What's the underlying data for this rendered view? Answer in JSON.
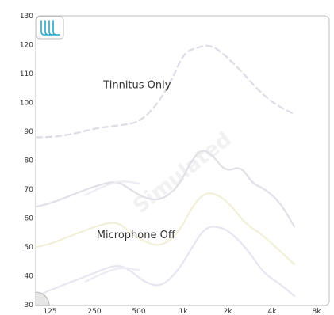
{
  "chart_data": {
    "type": "line",
    "x_categories": [
      "125",
      "250",
      "500",
      "1k",
      "2k",
      "4k",
      "8k"
    ],
    "y_ticks": [
      30,
      40,
      50,
      60,
      70,
      80,
      90,
      100,
      110,
      120,
      130
    ],
    "ylim": [
      30,
      130
    ],
    "grid": false,
    "annotations": [
      {
        "text": "Tinnitus Only",
        "x": 1.2,
        "y": 105
      },
      {
        "text": "Microphone Off",
        "x": 1.05,
        "y": 53
      }
    ],
    "watermark": "Simulated",
    "series": [
      {
        "style": "dashed",
        "color": "#dcdce6",
        "points": [
          [
            -0.3,
            88
          ],
          [
            0,
            88
          ],
          [
            0.5,
            89
          ],
          [
            1,
            91
          ],
          [
            1.5,
            92
          ],
          [
            2,
            93
          ],
          [
            2.4,
            99
          ],
          [
            2.75,
            108
          ],
          [
            3,
            117
          ],
          [
            3.3,
            119
          ],
          [
            3.6,
            120
          ],
          [
            3.9,
            117
          ],
          [
            4.3,
            111
          ],
          [
            4.7,
            104
          ],
          [
            5.1,
            99
          ],
          [
            5.5,
            96
          ]
        ]
      },
      {
        "style": "solid",
        "color": "#e0e0e6",
        "points": [
          [
            -0.3,
            64
          ],
          [
            0,
            65
          ],
          [
            0.5,
            68
          ],
          [
            1,
            71
          ],
          [
            1.5,
            73
          ],
          [
            1.8,
            70
          ],
          [
            2.1,
            67
          ],
          [
            2.5,
            66
          ],
          [
            2.9,
            71
          ],
          [
            3.15,
            79
          ],
          [
            3.4,
            84
          ],
          [
            3.65,
            82
          ],
          [
            3.95,
            76
          ],
          [
            4.3,
            78
          ],
          [
            4.55,
            72
          ],
          [
            4.85,
            70
          ],
          [
            5.2,
            65
          ],
          [
            5.5,
            57
          ]
        ]
      },
      {
        "style": "solid",
        "color": "#f2efd9",
        "points": [
          [
            -0.3,
            50
          ],
          [
            0,
            51
          ],
          [
            0.5,
            54
          ],
          [
            1,
            57
          ],
          [
            1.5,
            59
          ],
          [
            1.8,
            55
          ],
          [
            2.1,
            52
          ],
          [
            2.5,
            50
          ],
          [
            2.9,
            55
          ],
          [
            3.2,
            64
          ],
          [
            3.5,
            69
          ],
          [
            3.8,
            68
          ],
          [
            4.1,
            64
          ],
          [
            4.4,
            58
          ],
          [
            4.8,
            54
          ],
          [
            5.5,
            44
          ]
        ]
      },
      {
        "style": "solid",
        "color": "#e6e6f0",
        "points": [
          [
            -0.3,
            33
          ],
          [
            0,
            35
          ],
          [
            0.5,
            38
          ],
          [
            1,
            41
          ],
          [
            1.5,
            44
          ],
          [
            1.8,
            42
          ],
          [
            2.1,
            38
          ],
          [
            2.5,
            36
          ],
          [
            2.9,
            42
          ],
          [
            3.2,
            50
          ],
          [
            3.5,
            57
          ],
          [
            3.85,
            57
          ],
          [
            4.15,
            54
          ],
          [
            4.5,
            48
          ],
          [
            4.8,
            41
          ],
          [
            5.2,
            37
          ],
          [
            5.5,
            33
          ]
        ]
      },
      {
        "style": "solid",
        "color": "#ececf4",
        "points": [
          [
            0.8,
            68
          ],
          [
            1.2,
            71
          ],
          [
            1.6,
            73
          ],
          [
            2.0,
            72
          ]
        ]
      },
      {
        "style": "solid",
        "color": "#ececf4",
        "points": [
          [
            0.8,
            38
          ],
          [
            1.2,
            41
          ],
          [
            1.6,
            43
          ],
          [
            2.0,
            42
          ]
        ]
      }
    ]
  }
}
